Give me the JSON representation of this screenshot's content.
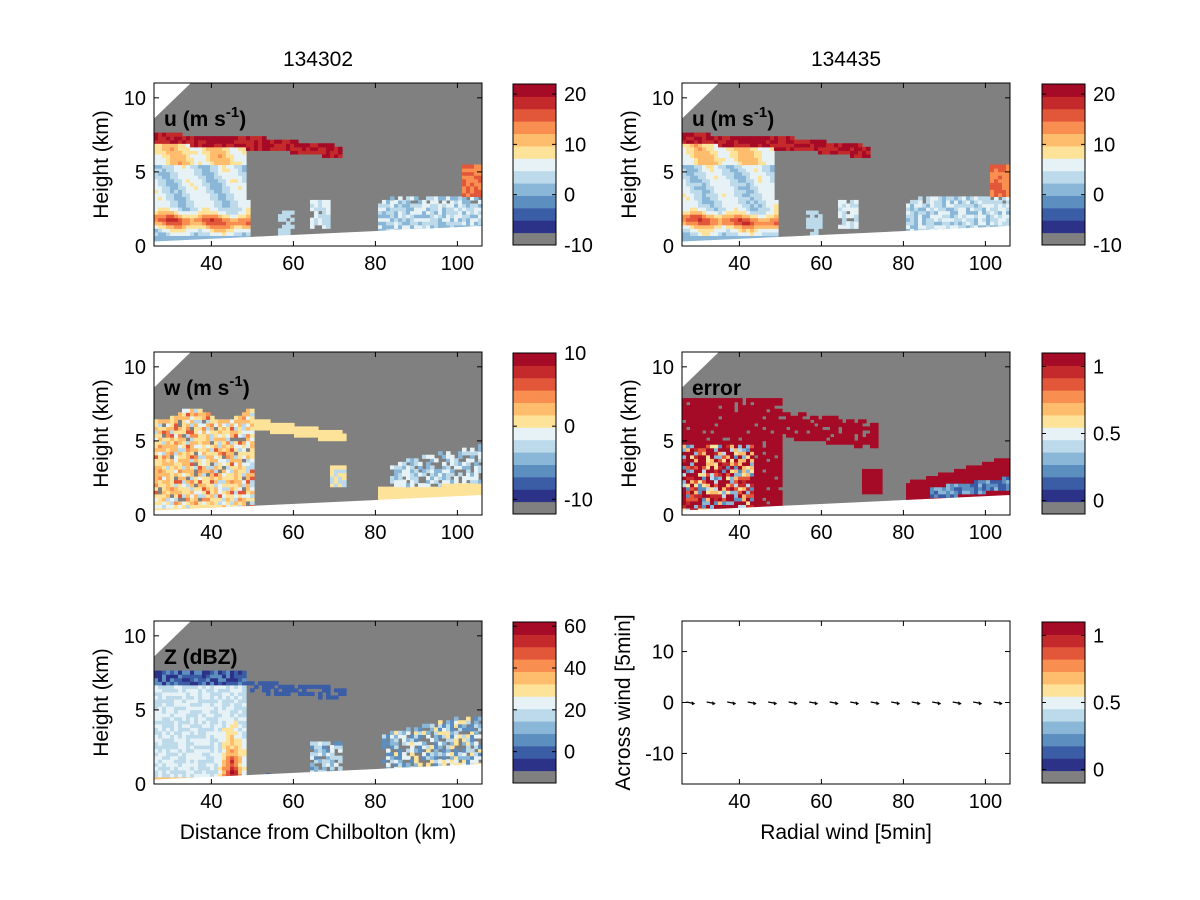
{
  "colormap": [
    "#808080",
    "#2c3288",
    "#3b5da6",
    "#5c8ec0",
    "#8ab7d7",
    "#bcdaea",
    "#e6f2f5",
    "#fde39a",
    "#fdbd6d",
    "#f98e51",
    "#e2563a",
    "#c42a2b",
    "#a50b26"
  ],
  "chart_data": [
    {
      "type": "heatmap",
      "title": "134302",
      "panel_label": "u (m s",
      "panel_label_sup": "-1",
      "ylabel": "Height (km)",
      "xlabel": "",
      "x_ticks": [
        "40",
        "60",
        "80",
        "100"
      ],
      "y_ticks": [
        "0",
        "5",
        "10"
      ],
      "xlim": [
        26,
        106
      ],
      "ylim": [
        0,
        11
      ],
      "colorbar": {
        "ticks": [
          "20",
          "10",
          "0",
          "-10"
        ],
        "range": [
          -10,
          22
        ]
      }
    },
    {
      "type": "heatmap",
      "title": "134435",
      "panel_label": "u (m s",
      "panel_label_sup": "-1",
      "ylabel": "Height (km)",
      "xlabel": "",
      "x_ticks": [
        "40",
        "60",
        "80",
        "100"
      ],
      "y_ticks": [
        "0",
        "5",
        "10"
      ],
      "xlim": [
        26,
        106
      ],
      "ylim": [
        0,
        11
      ],
      "colorbar": {
        "ticks": [
          "20",
          "10",
          "0",
          "-10"
        ],
        "range": [
          -10,
          22
        ]
      }
    },
    {
      "type": "heatmap",
      "title": "",
      "panel_label": "w (m s",
      "panel_label_sup": "-1",
      "ylabel": "Height (km)",
      "xlabel": "",
      "x_ticks": [
        "40",
        "60",
        "80",
        "100"
      ],
      "y_ticks": [
        "0",
        "5",
        "10"
      ],
      "xlim": [
        26,
        106
      ],
      "ylim": [
        0,
        11
      ],
      "colorbar": {
        "ticks": [
          "10",
          "0",
          "-10"
        ],
        "range": [
          -12,
          10
        ]
      }
    },
    {
      "type": "heatmap",
      "title": "",
      "panel_label": "error",
      "panel_label_sup": "",
      "ylabel": "Height (km)",
      "xlabel": "",
      "x_ticks": [
        "40",
        "60",
        "80",
        "100"
      ],
      "y_ticks": [
        "0",
        "5",
        "10"
      ],
      "xlim": [
        26,
        106
      ],
      "ylim": [
        0,
        11
      ],
      "colorbar": {
        "ticks": [
          "1",
          "0.5",
          "0"
        ],
        "range": [
          -0.1,
          1.1
        ]
      }
    },
    {
      "type": "heatmap",
      "title": "",
      "panel_label": "Z (dBZ)",
      "panel_label_sup": "",
      "ylabel": "Height (km)",
      "xlabel": "Distance from Chilbolton (km)",
      "x_ticks": [
        "40",
        "60",
        "80",
        "100"
      ],
      "y_ticks": [
        "0",
        "5",
        "10"
      ],
      "xlim": [
        26,
        106
      ],
      "ylim": [
        0,
        11
      ],
      "colorbar": {
        "ticks": [
          "60",
          "40",
          "20",
          "0"
        ],
        "range": [
          -15,
          62
        ]
      }
    },
    {
      "type": "scatter",
      "title": "",
      "panel_label": "",
      "panel_label_sup": "",
      "ylabel": "Across wind [5min]",
      "xlabel": "Radial wind [5min]",
      "x_ticks": [
        "40",
        "60",
        "80",
        "100"
      ],
      "y_ticks": [
        "10",
        "0",
        "-10"
      ],
      "xlim": [
        26,
        106
      ],
      "ylim": [
        -16,
        16
      ],
      "vectors_x": [
        28,
        33,
        38,
        43,
        48,
        53,
        58,
        63,
        68,
        73,
        78,
        83,
        88,
        93,
        98,
        103
      ],
      "vectors_y": [
        0,
        0,
        0,
        0,
        0,
        0,
        0,
        0,
        0,
        0,
        0,
        0,
        0,
        0,
        0,
        0
      ],
      "colorbar": {
        "ticks": [
          "1",
          "0.5",
          "0"
        ],
        "range": [
          -0.1,
          1.1
        ]
      }
    }
  ]
}
